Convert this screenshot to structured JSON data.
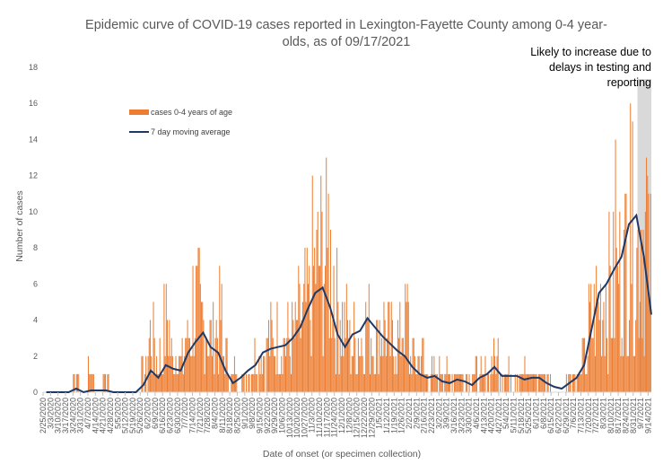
{
  "chart_data": {
    "type": "bar",
    "title": "Epidemic curve of COVID-19 cases reported in Lexington-Fayette County among 0-4 year-olds, as of 09/17/2021",
    "title_lines": [
      "Epidemic curve of COVID-19 cases reported in Lexington-Fayette County among 0-4 year-",
      "olds, as of 09/17/2021"
    ],
    "xlabel": "Date of onset (or specimen collection)",
    "ylabel": "Number of cases",
    "ylim": [
      0,
      18
    ],
    "yticks": [
      "0",
      "2",
      "4",
      "6",
      "8",
      "10",
      "12",
      "14",
      "16",
      "18"
    ],
    "x_start": "2/25/2020",
    "x_end": "9/17/2021",
    "xtick_labels": [
      "2/25/2020",
      "3/3/2020",
      "3/10/2020",
      "3/17/2020",
      "3/24/2020",
      "3/31/2020",
      "4/7/2020",
      "4/14/2020",
      "4/21/2020",
      "4/28/2020",
      "5/5/2020",
      "5/12/2020",
      "5/19/2020",
      "5/26/2020",
      "6/2/2020",
      "6/9/2020",
      "6/16/2020",
      "6/23/2020",
      "6/30/2020",
      "7/7/2020",
      "7/14/2020",
      "7/21/2020",
      "7/28/2020",
      "8/4/2020",
      "8/11/2020",
      "8/18/2020",
      "8/25/2020",
      "9/1/2020",
      "9/8/2020",
      "9/15/2020",
      "9/22/2020",
      "9/29/2020",
      "10/6/2020",
      "10/13/2020",
      "10/20/2020",
      "10/27/2020",
      "11/3/2020",
      "11/10/2020",
      "11/17/2020",
      "11/24/2020",
      "12/1/2020",
      "12/8/2020",
      "12/15/2020",
      "12/22/2020",
      "12/29/2020",
      "1/5/2021",
      "1/12/2021",
      "1/19/2021",
      "1/26/2021",
      "2/2/2021",
      "2/9/2021",
      "2/16/2021",
      "2/23/2021",
      "3/2/2021",
      "3/9/2021",
      "3/16/2021",
      "3/23/2021",
      "3/30/2021",
      "4/6/2021",
      "4/13/2021",
      "4/20/2021",
      "4/27/2021",
      "5/4/2021",
      "5/11/2021",
      "5/18/2021",
      "5/25/2021",
      "6/1/2021",
      "6/8/2021",
      "6/15/2021",
      "6/22/2021",
      "6/29/2021",
      "7/6/2021",
      "7/13/2021",
      "7/20/2021",
      "7/27/2021",
      "8/3/2021",
      "8/10/2021",
      "8/17/2021",
      "8/24/2021",
      "8/31/2021",
      "9/7/2021",
      "9/14/2021"
    ],
    "series": [
      {
        "name": "cases 0-4 years of age",
        "kind": "bar",
        "color": "#ED7D31",
        "weekly_values": [
          0,
          0,
          0,
          0,
          1,
          0,
          1,
          0,
          1,
          0,
          0,
          0,
          0,
          1,
          3,
          2,
          4,
          2,
          2,
          3,
          5,
          4,
          3,
          4,
          2,
          1,
          1,
          1,
          2,
          2,
          3,
          3,
          3,
          3,
          4,
          5,
          7,
          8,
          7,
          5,
          4,
          3,
          3,
          4,
          3,
          4,
          3,
          3,
          4,
          2,
          2,
          1,
          1,
          1,
          1,
          1,
          1,
          1,
          1,
          1,
          2,
          1,
          1,
          1,
          1,
          1,
          1,
          1,
          0,
          0,
          1,
          1,
          2,
          4,
          5,
          6,
          6,
          7,
          9,
          8,
          10,
          7
        ]
      },
      {
        "name": "7 day moving average",
        "kind": "line",
        "color": "#1F3864",
        "weekly_values": [
          0,
          0,
          0,
          0,
          0.2,
          0,
          0.1,
          0.1,
          0.1,
          0,
          0,
          0,
          0,
          0.4,
          1.2,
          0.8,
          1.5,
          1.3,
          1.2,
          2.2,
          2.8,
          3.3,
          2.5,
          2.2,
          1.2,
          0.5,
          0.8,
          1.2,
          1.5,
          2.2,
          2.4,
          2.5,
          2.6,
          3.0,
          3.6,
          4.6,
          5.5,
          5.8,
          4.7,
          3.2,
          2.5,
          3.2,
          3.4,
          4.1,
          3.6,
          3.1,
          2.7,
          2.3,
          2.0,
          1.4,
          1.0,
          0.8,
          0.9,
          0.6,
          0.5,
          0.7,
          0.6,
          0.4,
          0.8,
          1.0,
          1.4,
          0.9,
          0.9,
          0.9,
          0.7,
          0.8,
          0.8,
          0.5,
          0.3,
          0.2,
          0.5,
          0.8,
          1.5,
          3.5,
          5.5,
          6.0,
          6.8,
          7.5,
          9.3,
          9.8,
          7.5,
          4.3
        ]
      }
    ],
    "peak_annotations": [
      {
        "x": "8/28/2021",
        "y": 16
      },
      {
        "x": "8/14/2021",
        "y": 14
      },
      {
        "x": "11/18/2020",
        "y": 11
      }
    ],
    "shaded_region": {
      "from": "9/4/2021",
      "to": "9/17/2021",
      "color": "#D9D9D9",
      "note_lines": [
        "Likely to increase due to",
        "delays in testing and",
        "reporting"
      ]
    },
    "legend": {
      "placement": "upper-left"
    },
    "grid": false
  }
}
